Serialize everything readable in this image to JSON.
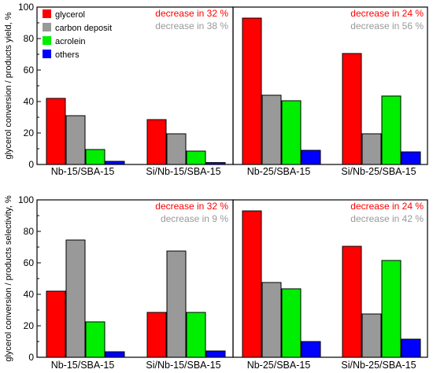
{
  "colors": {
    "glycerol": "#ff0000",
    "carbon_deposit": "#999999",
    "acrolein": "#00ee00",
    "others": "#0000ff",
    "annotation_red": "#ff0000",
    "annotation_gray": "#999999"
  },
  "legend": {
    "placement": "top-left of top-left panel",
    "entries": [
      "glycerol",
      "carbon deposit",
      "acrolein",
      "others"
    ]
  },
  "chart_data": [
    {
      "type": "bar",
      "panel": "top",
      "ylabel": "glycerol conversion / products yield, %",
      "ylim": [
        0,
        100
      ],
      "yticks": [
        "0",
        "20",
        "40",
        "60",
        "80",
        "100"
      ],
      "groups": [
        {
          "categories": [
            "Nb-15/SBA-15",
            "Si/Nb-15/SBA-15"
          ],
          "series": [
            {
              "name": "glycerol",
              "values": [
                42,
                28.5
              ]
            },
            {
              "name": "carbon deposit",
              "values": [
                31,
                19.5
              ]
            },
            {
              "name": "acrolein",
              "values": [
                9.5,
                8.5
              ]
            },
            {
              "name": "others",
              "values": [
                2,
                1.2
              ]
            }
          ],
          "annotations": [
            "decrease in 32 %",
            "decrease in 38 %"
          ]
        },
        {
          "categories": [
            "Nb-25/SBA-15",
            "Si/Nb-25/SBA-15"
          ],
          "series": [
            {
              "name": "glycerol",
              "values": [
                93,
                70.5
              ]
            },
            {
              "name": "carbon deposit",
              "values": [
                44,
                19.5
              ]
            },
            {
              "name": "acrolein",
              "values": [
                40.5,
                43.5
              ]
            },
            {
              "name": "others",
              "values": [
                9,
                8
              ]
            }
          ],
          "annotations": [
            "decrease in 24 %",
            "decrease in 56 %"
          ]
        }
      ]
    },
    {
      "type": "bar",
      "panel": "bottom",
      "ylabel": "glycerol conversion / products selectivity, %",
      "ylim": [
        0,
        100
      ],
      "yticks": [
        "0",
        "20",
        "40",
        "60",
        "80",
        "100"
      ],
      "groups": [
        {
          "categories": [
            "Nb-15/SBA-15",
            "Si/Nb-15/SBA-15"
          ],
          "series": [
            {
              "name": "glycerol",
              "values": [
                42,
                28.5
              ]
            },
            {
              "name": "carbon deposit",
              "values": [
                74.5,
                67.5
              ]
            },
            {
              "name": "acrolein",
              "values": [
                22.5,
                28.5
              ]
            },
            {
              "name": "others",
              "values": [
                3.5,
                4
              ]
            }
          ],
          "annotations": [
            "decrease in 32 %",
            "decrease in 9 %"
          ]
        },
        {
          "categories": [
            "Nb-25/SBA-15",
            "Si/Nb-25/SBA-15"
          ],
          "series": [
            {
              "name": "glycerol",
              "values": [
                93,
                70.5
              ]
            },
            {
              "name": "carbon deposit",
              "values": [
                47.5,
                27.5
              ]
            },
            {
              "name": "acrolein",
              "values": [
                43.5,
                61.5
              ]
            },
            {
              "name": "others",
              "values": [
                10,
                11.5
              ]
            }
          ],
          "annotations": [
            "decrease in 24 %",
            "decrease in 42 %"
          ]
        }
      ]
    }
  ]
}
